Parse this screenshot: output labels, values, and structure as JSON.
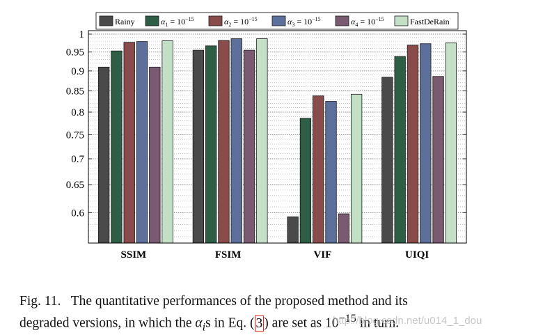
{
  "chart_data": {
    "type": "bar",
    "title": "",
    "xlabel": "",
    "ylabel": "",
    "ylim": [
      0.55,
      1.01
    ],
    "y_scale": "log",
    "grid": true,
    "legend_position": "top",
    "categories": [
      "SSIM",
      "FSIM",
      "VIF",
      "UIQI"
    ],
    "yticks": [
      0.6,
      0.65,
      0.7,
      0.75,
      0.8,
      0.85,
      0.9,
      0.95,
      1
    ],
    "ytick_labels": [
      "0.6",
      "0.65",
      "0.7",
      "0.75",
      "0.8",
      "0.85",
      "0.9",
      "0.95",
      "1"
    ],
    "series": [
      {
        "name": "Rainy",
        "color": "#4a4a4a",
        "values": [
          0.91,
          0.955,
          0.593,
          0.884
        ]
      },
      {
        "name": "α1 = 10^-15",
        "color": "#2e5e45",
        "values": [
          0.953,
          0.967,
          0.786,
          0.938
        ]
      },
      {
        "name": "α2 = 10^-15",
        "color": "#8a4b4b",
        "values": [
          0.977,
          0.982,
          0.838,
          0.969
        ]
      },
      {
        "name": "α3 = 10^-15",
        "color": "#5d6f9b",
        "values": [
          0.979,
          0.987,
          0.825,
          0.973
        ]
      },
      {
        "name": "α4 = 10^-15",
        "color": "#7a5a70",
        "values": [
          0.91,
          0.955,
          0.598,
          0.886
        ]
      },
      {
        "name": "FastDeRain",
        "color": "#c3e0c7",
        "values": [
          0.981,
          0.987,
          0.842,
          0.975
        ]
      }
    ],
    "legend_labels": [
      {
        "base": "Rainy"
      },
      {
        "base": "α",
        "sub": "1",
        "mid": " = 10",
        "sup": "−15"
      },
      {
        "base": "α",
        "sub": "2",
        "mid": " = 10",
        "sup": "−15"
      },
      {
        "base": "α",
        "sub": "3",
        "mid": " = 10",
        "sup": "−15"
      },
      {
        "base": "α",
        "sub": "4",
        "mid": " = 10",
        "sup": "−15"
      },
      {
        "base": "FastDeRain"
      }
    ]
  },
  "caption": {
    "fig_label": "Fig. 11.",
    "line1_text": "The quantitative performances of the proposed method and its",
    "line2_pre": "degraded versions, in which the ",
    "alpha": "α",
    "alpha_sub": "i",
    "line2_mid": "s in Eq. (",
    "eq_ref": "3",
    "line2_post1": ") are set as 10",
    "exponent": "−15",
    "line2_post2": " in turn."
  },
  "watermark": "http://blog.csdn.net/u014_1_dou"
}
